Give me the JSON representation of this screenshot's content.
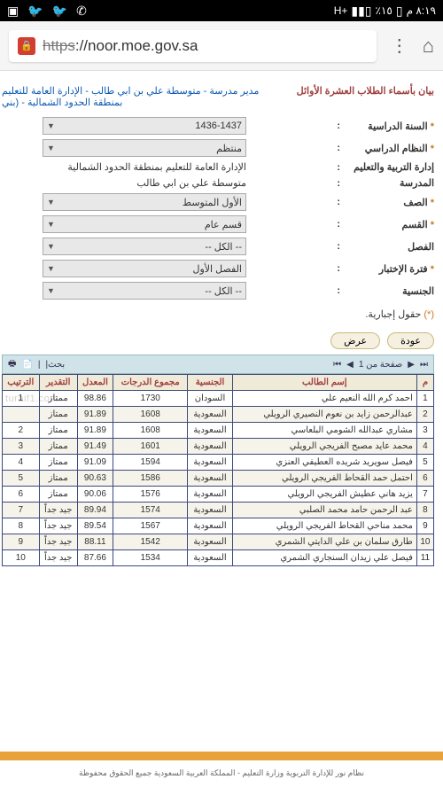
{
  "status": {
    "time": "٨:١٩ م",
    "battery": "٪١٥",
    "network": "H+"
  },
  "browser": {
    "url_prefix": "https",
    "url_rest": "://noor.moe.gov.sa"
  },
  "page_title": "بيان بأسماء الطلاب العشرة الأوائل",
  "breadcrumb_path": "مدير مدرسة - متوسطة علي بن ابي طالب - الإدارة العامة للتعليم بمنطقة الحدود الشمالية - (بني",
  "form": {
    "year_label": "السنة الدراسية",
    "year_value": "1436-1437",
    "system_label": "النظام الدراسي",
    "system_value": "منتظم",
    "admin_label": "إدارة التربية والتعليم",
    "admin_value": "الإدارة العامة للتعليم بمنطقة الحدود الشمالية",
    "school_label": "المدرسة",
    "school_value": "متوسطة علي بن ابي طالب",
    "grade_label": "الصف",
    "grade_value": "الأول المتوسط",
    "section_label": "القسم",
    "section_value": "قسم عام",
    "class_label": "الفصل",
    "class_value": "-- الكل --",
    "period_label": "فترة الإختبار",
    "period_value": "الفصل الأول",
    "nationality_label": "الجنسية",
    "nationality_value": "-- الكل --"
  },
  "required_note": "(*) حقول إجبارية.",
  "buttons": {
    "view": "عرض",
    "back": "عودة"
  },
  "toolbar": {
    "page_info": "صفحة من 1",
    "search": "|بحث"
  },
  "table": {
    "headers": [
      "م",
      "إسم الطالب",
      "الجنسية",
      "مجموع الدرجات",
      "المعدل",
      "التقدير",
      "الترتيب"
    ],
    "rows": [
      {
        "n": "1",
        "name": "احمد كرم الله النعيم علي",
        "nat": "السودان",
        "total": "1730",
        "avg": "98.86",
        "grade": "ممتاز",
        "rank": "1"
      },
      {
        "n": "2",
        "name": "عبدالرحمن زايد بن نعوم النصيري الرويلي",
        "nat": "السعودية",
        "total": "1608",
        "avg": "91.89",
        "grade": "ممتاز",
        "rank": ""
      },
      {
        "n": "3",
        "name": "مشاري عبدالله الشومي البلعاسي",
        "nat": "السعودية",
        "total": "1608",
        "avg": "91.89",
        "grade": "ممتاز",
        "rank": "2"
      },
      {
        "n": "4",
        "name": "محمد عايد مصبح الفريجي الرويلي",
        "nat": "السعودية",
        "total": "1601",
        "avg": "91.49",
        "grade": "ممتاز",
        "rank": "3"
      },
      {
        "n": "5",
        "name": "فيصل سويريد شريده العطيفي العنزي",
        "nat": "السعودية",
        "total": "1594",
        "avg": "91.09",
        "grade": "ممتاز",
        "rank": "4"
      },
      {
        "n": "6",
        "name": "احتمل حمد القحاط الفريجي الرويلي",
        "nat": "السعودية",
        "total": "1586",
        "avg": "90.63",
        "grade": "ممتاز",
        "rank": "5"
      },
      {
        "n": "7",
        "name": "يزيد هاني عطيش الفريجي الرويلي",
        "nat": "السعودية",
        "total": "1576",
        "avg": "90.06",
        "grade": "ممتاز",
        "rank": "6"
      },
      {
        "n": "8",
        "name": "عبد الرحمن حامد محمد الصلبي",
        "nat": "السعودية",
        "total": "1574",
        "avg": "89.94",
        "grade": "جيد جداً",
        "rank": "7"
      },
      {
        "n": "9",
        "name": "محمد مناحي القحاط الفريجي الرويلي",
        "nat": "السعودية",
        "total": "1567",
        "avg": "89.54",
        "grade": "جيد جداً",
        "rank": "8"
      },
      {
        "n": "10",
        "name": "طارق سلمان بن علي الدايتي الشمري",
        "nat": "السعودية",
        "total": "1542",
        "avg": "88.11",
        "grade": "جيد جداً",
        "rank": "9"
      },
      {
        "n": "11",
        "name": "فيصل علي زيدان السنجاري الشمري",
        "nat": "السعودية",
        "total": "1534",
        "avg": "87.66",
        "grade": "جيد جداً",
        "rank": "10"
      }
    ]
  },
  "footer": "نظام نور للإدارة التربوية  وزارة التعليم - المملكة العربية السعودية  جميع الحقوق محفوظة",
  "watermark": "turaif1.com"
}
